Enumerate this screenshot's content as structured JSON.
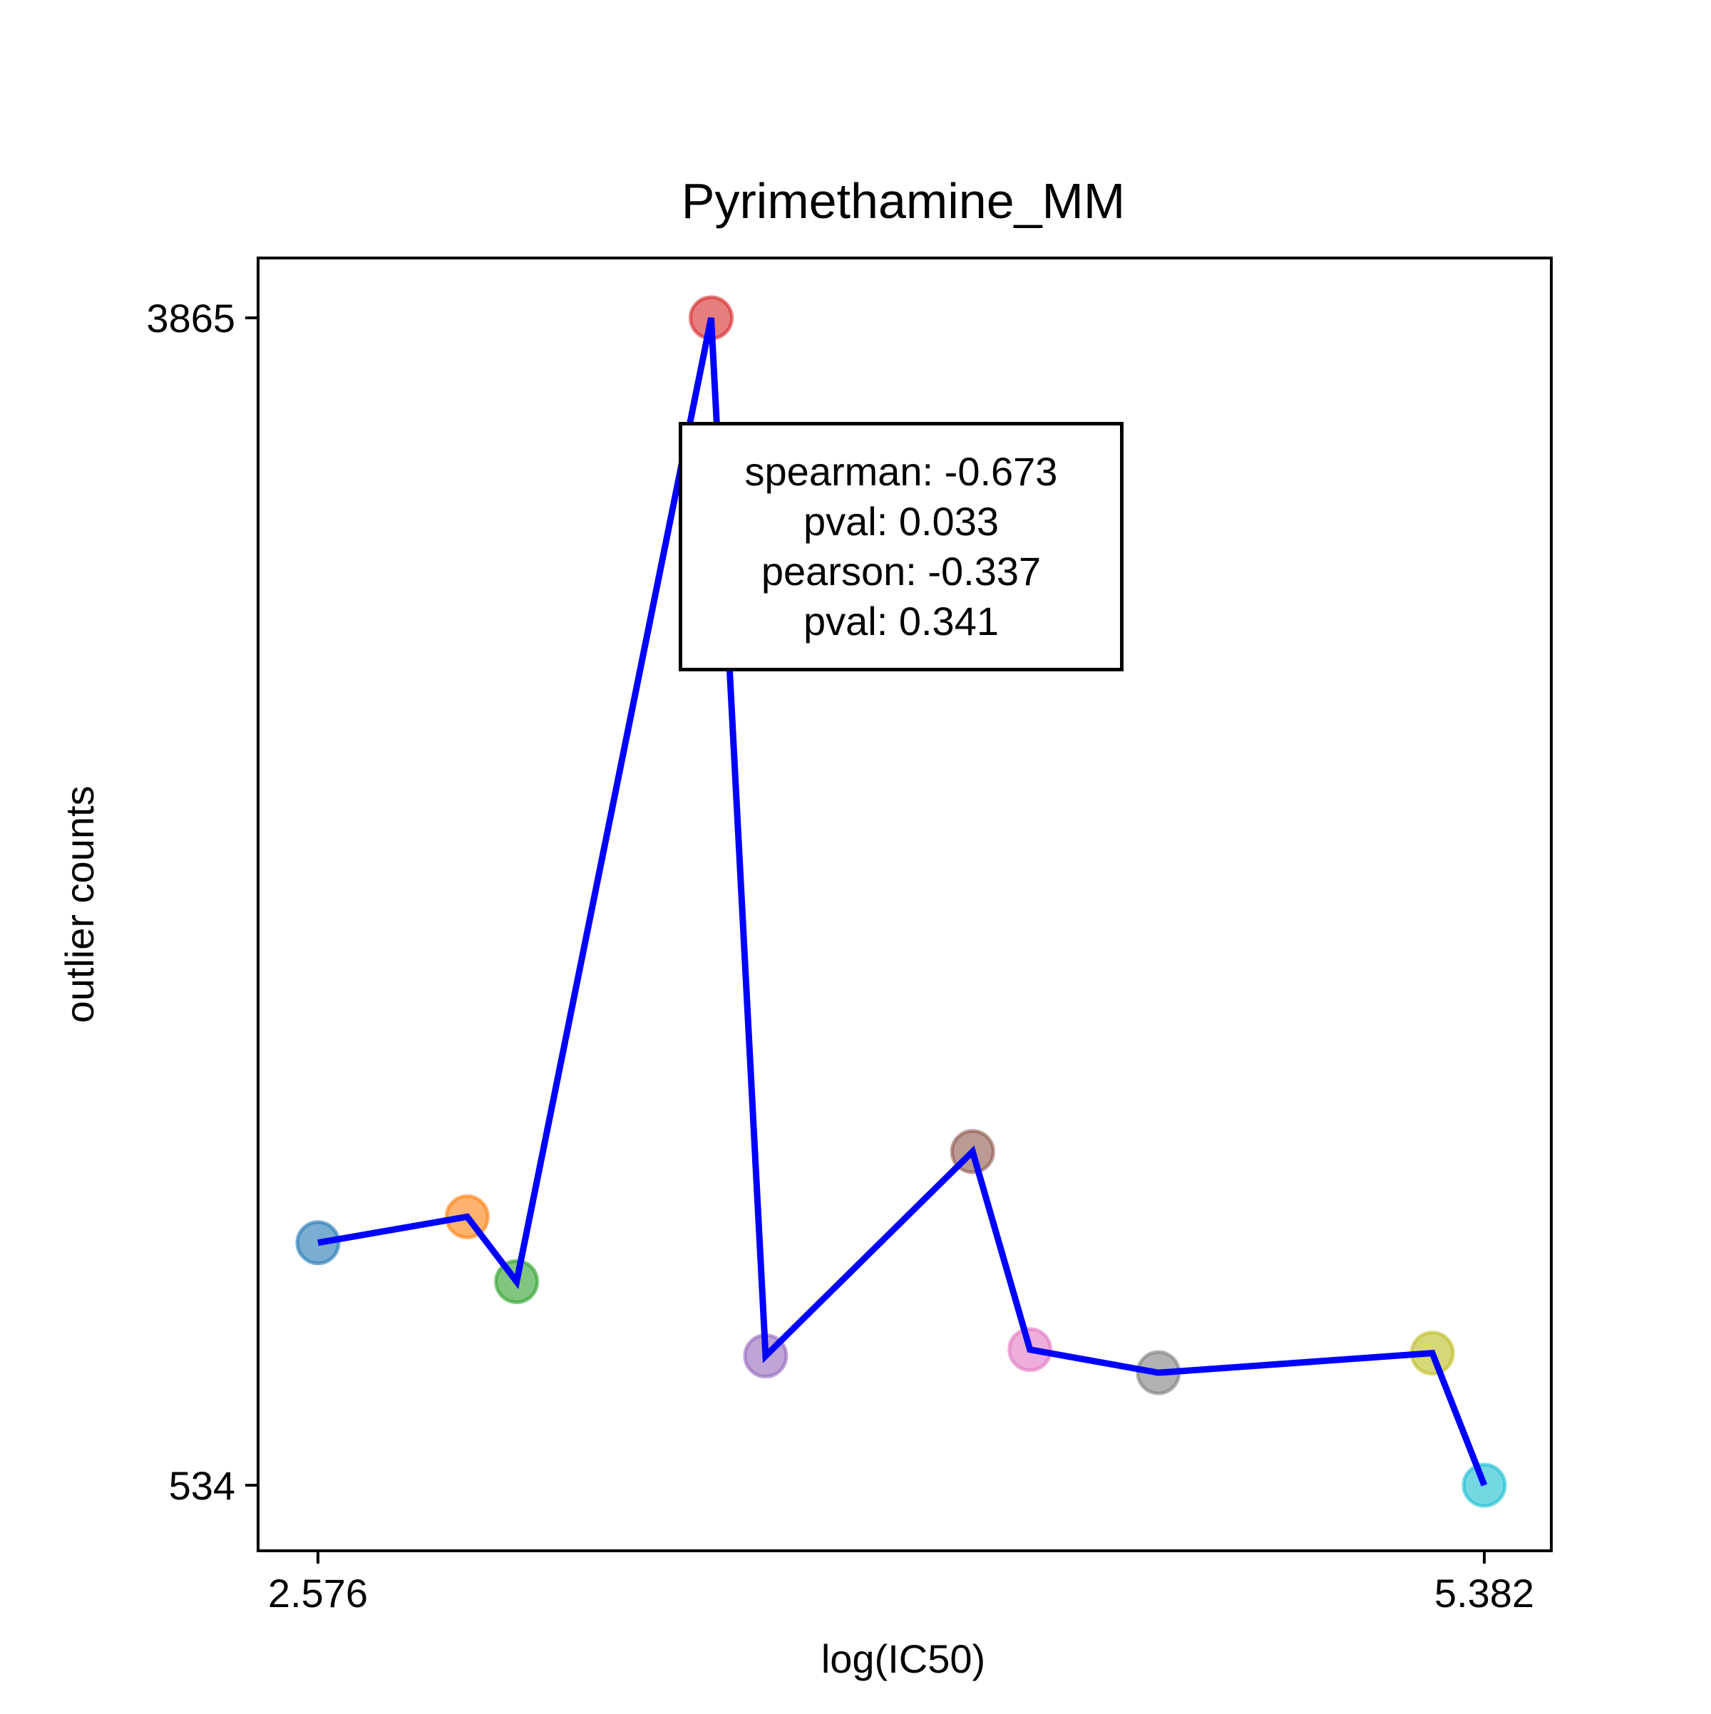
{
  "chart_data": {
    "type": "line",
    "title": "Pyrimethamine_MM",
    "xlabel": "log(IC50)",
    "ylabel": "outlier counts",
    "xlim": [
      2.576,
      5.382
    ],
    "ylim": [
      534,
      3865
    ],
    "xticks": [
      "2.576",
      "5.382"
    ],
    "yticks": [
      "3865",
      "534"
    ],
    "line_color": "#0000ff",
    "points": [
      {
        "x": 2.576,
        "y": 1226,
        "color": "#1f77b4"
      },
      {
        "x": 2.935,
        "y": 1300,
        "color": "#ff7f0e"
      },
      {
        "x": 3.054,
        "y": 1115,
        "color": "#2ca02c"
      },
      {
        "x": 3.522,
        "y": 3865,
        "color": "#d62728"
      },
      {
        "x": 3.653,
        "y": 903,
        "color": "#9467bd"
      },
      {
        "x": 4.151,
        "y": 1486,
        "color": "#8c564b"
      },
      {
        "x": 4.289,
        "y": 921,
        "color": "#e377c2"
      },
      {
        "x": 4.598,
        "y": 855,
        "color": "#7f7f7f"
      },
      {
        "x": 5.257,
        "y": 911,
        "color": "#bcbd22"
      },
      {
        "x": 5.382,
        "y": 534,
        "color": "#17becf"
      }
    ],
    "legend": "none",
    "grid": false
  },
  "annotation": {
    "line1": "spearman: -0.673",
    "line2": "pval: 0.033",
    "line3": "pearson: -0.337",
    "line4": "pval: 0.341"
  }
}
